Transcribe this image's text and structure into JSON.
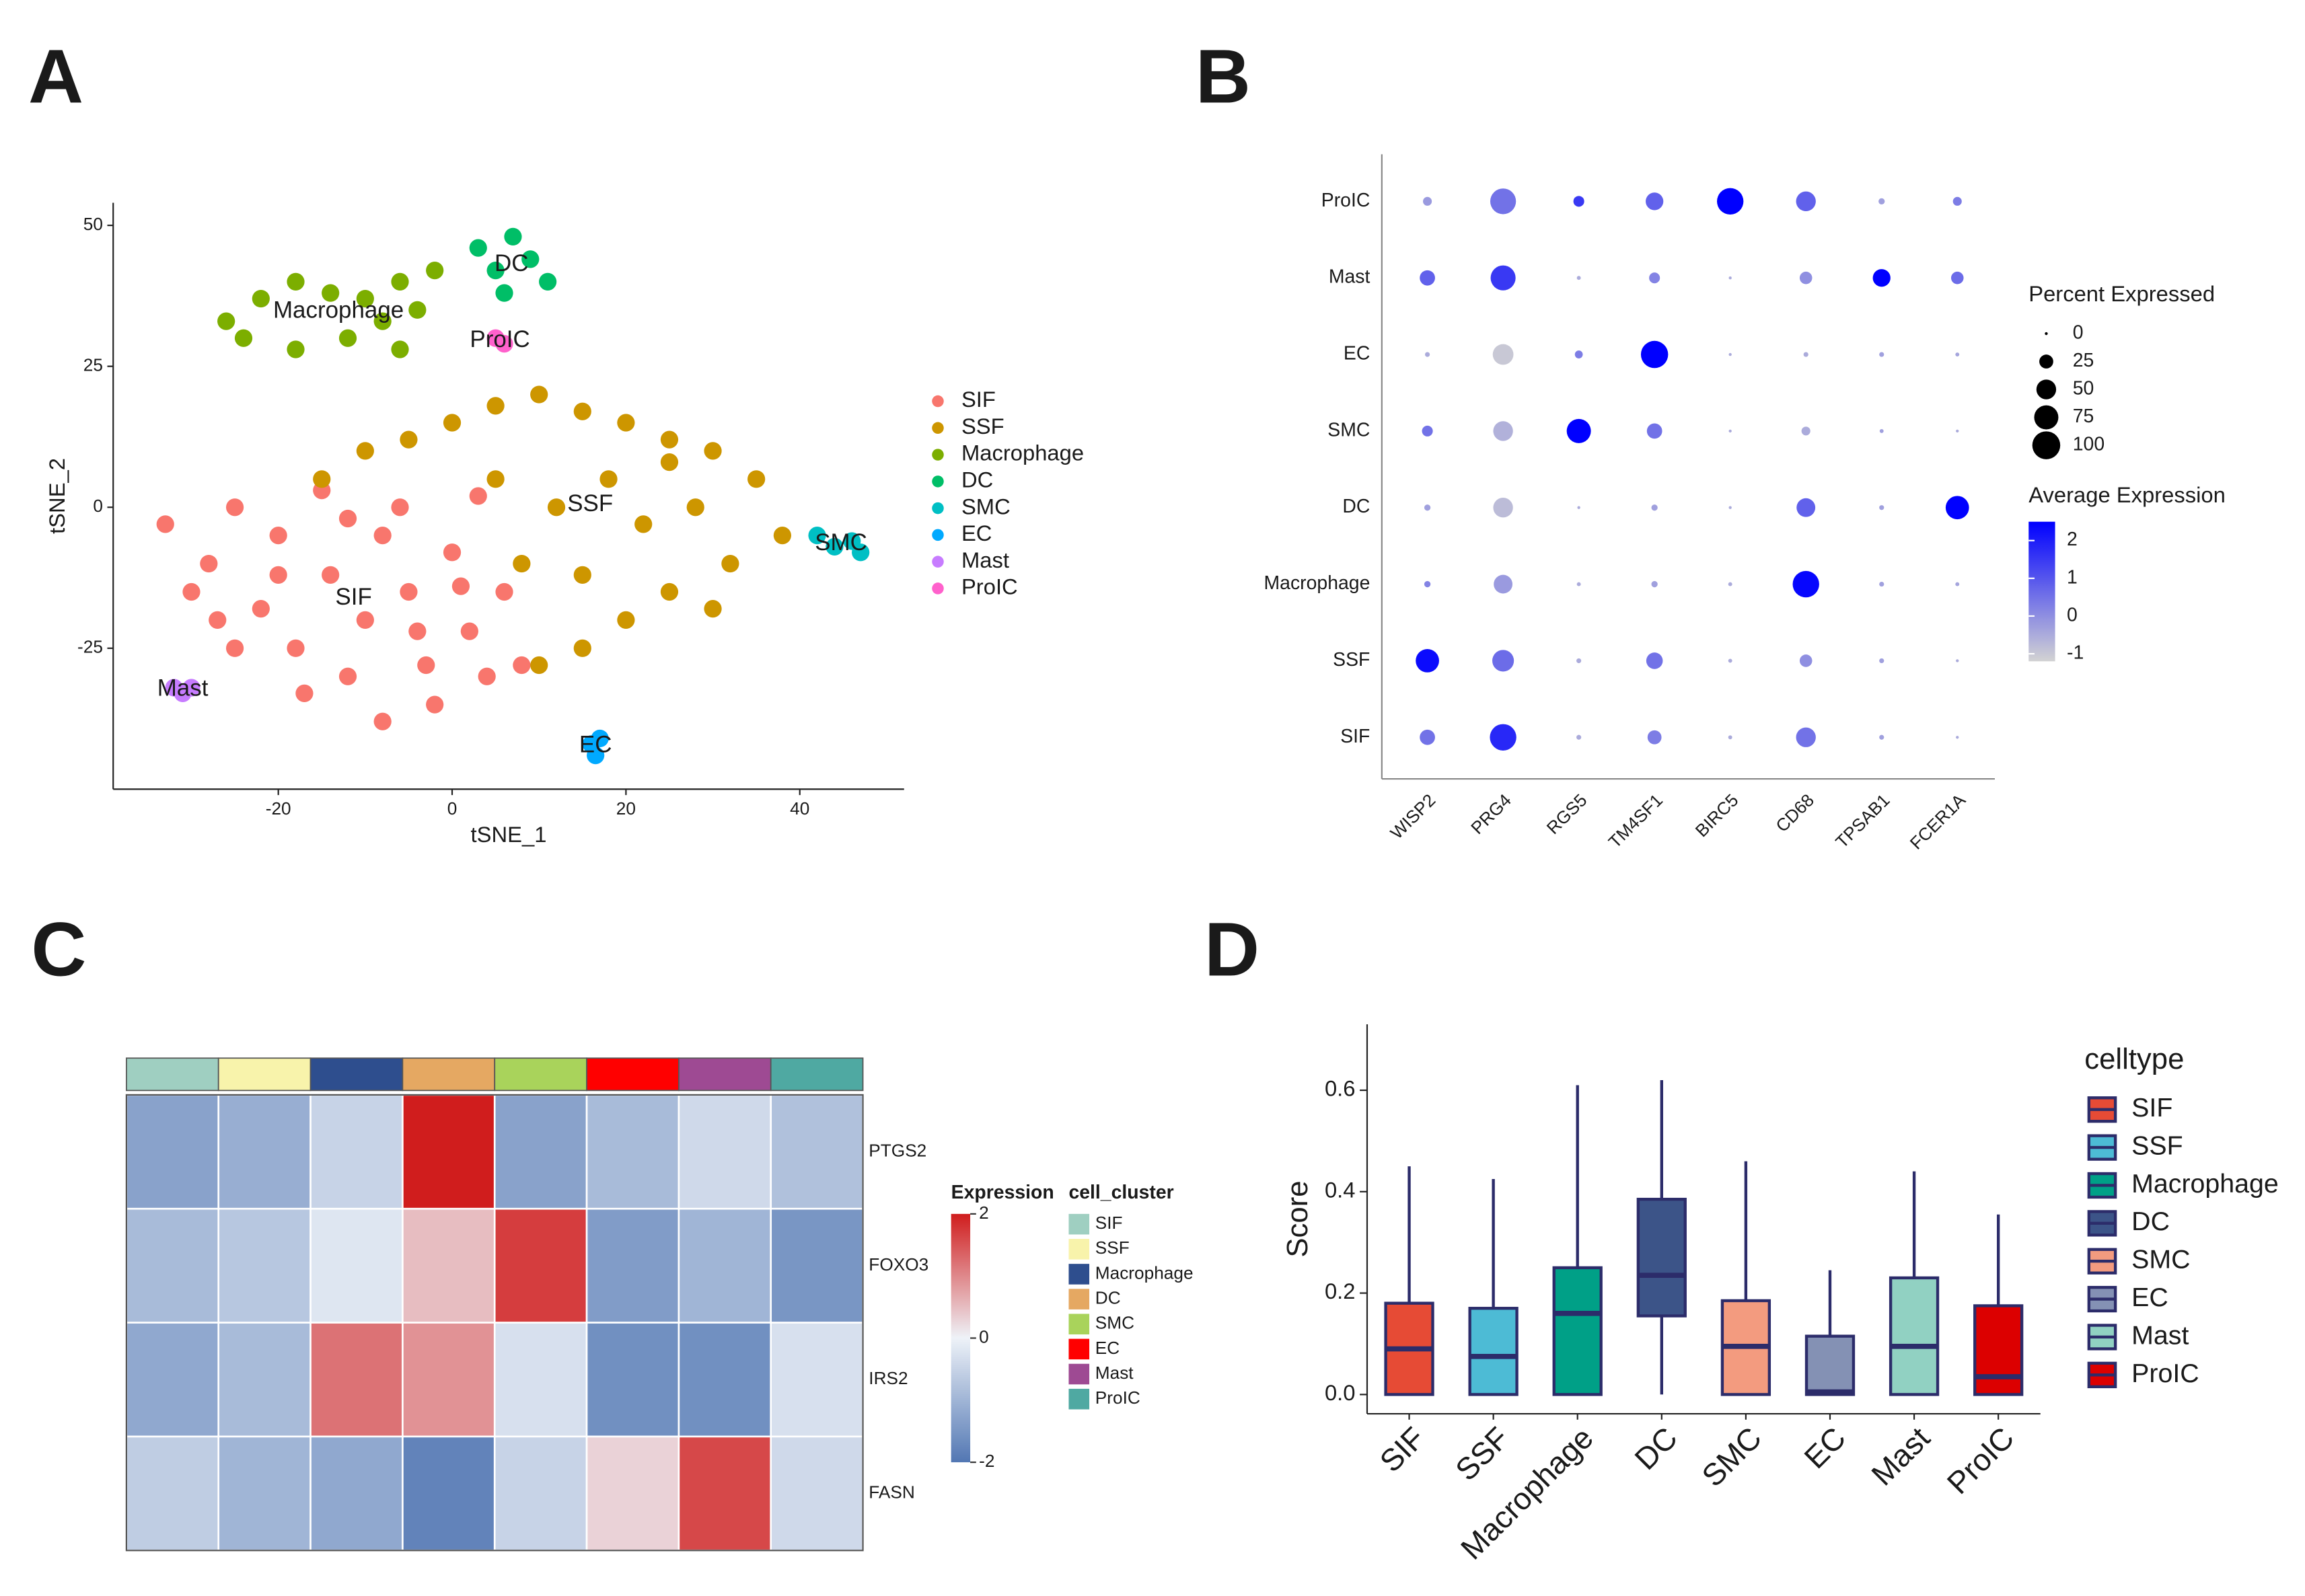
{
  "chart_data": [
    {
      "panel": "A",
      "type": "scatter",
      "xlabel": "tSNE_1",
      "ylabel": "tSNE_2",
      "xlim": [
        -39,
        52
      ],
      "ylim": [
        -50,
        54
      ],
      "xticks": [
        -20,
        0,
        20,
        40
      ],
      "yticks": [
        -25,
        0,
        25,
        50
      ],
      "series": [
        {
          "name": "SIF",
          "color": "#f8766d",
          "x": [
            -33,
            -28,
            -25,
            -22,
            -20,
            -18,
            -15,
            -14,
            -12,
            -10,
            -8,
            -6,
            -5,
            -3,
            -2,
            0,
            2,
            4,
            6,
            3,
            -25,
            -30,
            -17,
            -8,
            8,
            -12,
            -20,
            -4,
            1,
            -27
          ],
          "y": [
            -3,
            -10,
            0,
            -18,
            -5,
            -25,
            3,
            -12,
            -30,
            -20,
            -5,
            0,
            -15,
            -28,
            -35,
            -8,
            -22,
            -30,
            -15,
            2,
            -25,
            -15,
            -33,
            -38,
            -28,
            -2,
            -12,
            -22,
            -14,
            -20
          ]
        },
        {
          "name": "SSF",
          "color": "#cd9600",
          "x": [
            -15,
            -10,
            -5,
            0,
            5,
            10,
            15,
            20,
            25,
            30,
            35,
            38,
            32,
            25,
            20,
            15,
            10,
            8,
            12,
            18,
            22,
            28,
            5,
            15,
            30,
            25
          ],
          "y": [
            5,
            10,
            12,
            15,
            18,
            20,
            17,
            15,
            12,
            10,
            5,
            -5,
            -10,
            -15,
            -20,
            -25,
            -28,
            -10,
            0,
            5,
            -3,
            0,
            5,
            -12,
            -18,
            8
          ]
        },
        {
          "name": "Macrophage",
          "color": "#7cae00",
          "x": [
            -26,
            -22,
            -18,
            -14,
            -10,
            -6,
            -2,
            -12,
            -18,
            -24,
            -8,
            -4,
            -6
          ],
          "y": [
            33,
            37,
            40,
            38,
            37,
            40,
            42,
            30,
            28,
            30,
            33,
            35,
            28
          ]
        },
        {
          "name": "DC",
          "color": "#00be67",
          "x": [
            3,
            5,
            7,
            9,
            11,
            6
          ],
          "y": [
            46,
            42,
            48,
            44,
            40,
            38
          ]
        },
        {
          "name": "SMC",
          "color": "#00bfc4",
          "x": [
            42,
            44,
            46,
            47
          ],
          "y": [
            -5,
            -7,
            -6,
            -8
          ]
        },
        {
          "name": "EC",
          "color": "#00a9ff",
          "x": [
            16,
            16.5,
            17
          ],
          "y": [
            -42,
            -44,
            -41
          ]
        },
        {
          "name": "Mast",
          "color": "#c77cff",
          "x": [
            -32,
            -31,
            -30
          ],
          "y": [
            -32,
            -33,
            -32
          ]
        },
        {
          "name": "ProIC",
          "color": "#ff61cc",
          "x": [
            5,
            6
          ],
          "y": [
            30,
            29
          ]
        }
      ]
    },
    {
      "panel": "B",
      "type": "dot",
      "categories": [
        "WISP2",
        "PRG4",
        "RGS5",
        "TM4SF1",
        "BIRC5",
        "CD68",
        "TPSAB1",
        "FCER1A"
      ],
      "rows": [
        "ProIC",
        "Mast",
        "EC",
        "SMC",
        "DC",
        "Macrophage",
        "SSF",
        "SIF"
      ],
      "percent": [
        [
          10,
          85,
          15,
          40,
          90,
          50,
          5,
          10
        ],
        [
          30,
          80,
          2,
          15,
          1,
          20,
          40,
          20
        ],
        [
          3,
          55,
          8,
          95,
          1,
          3,
          3,
          2
        ],
        [
          15,
          50,
          75,
          30,
          1,
          10,
          2,
          1
        ],
        [
          5,
          50,
          1,
          5,
          1,
          45,
          3,
          70
        ],
        [
          5,
          45,
          2,
          5,
          2,
          90,
          3,
          2
        ],
        [
          70,
          60,
          3,
          35,
          2,
          20,
          3,
          1
        ],
        [
          30,
          90,
          3,
          25,
          2,
          50,
          3,
          1
        ]
      ],
      "avg": [
        [
          -0.2,
          0.5,
          1.5,
          0.8,
          2.5,
          0.8,
          -0.3,
          0.3
        ],
        [
          0.8,
          1.5,
          -0.5,
          0.2,
          -0.5,
          0,
          2.5,
          0.6
        ],
        [
          -0.5,
          -1,
          0.3,
          2.5,
          -0.5,
          -0.5,
          -0.3,
          -0.4
        ],
        [
          0.5,
          -0.6,
          2.5,
          0.5,
          -0.5,
          -0.5,
          -0.3,
          -0.5
        ],
        [
          -0.3,
          -0.8,
          -0.5,
          -0.3,
          -0.5,
          0.8,
          -0.3,
          2.5
        ],
        [
          0.2,
          -0.2,
          -0.5,
          -0.3,
          -0.5,
          2.4,
          -0.3,
          -0.4
        ],
        [
          2.3,
          0.6,
          -0.5,
          0.5,
          -0.5,
          0,
          -0.3,
          -0.5
        ],
        [
          0.5,
          1.8,
          -0.5,
          0.3,
          -0.5,
          0.5,
          -0.3,
          -0.5
        ]
      ],
      "size_title": "Percent Expressed",
      "size_ticks": [
        0,
        25,
        50,
        75,
        100
      ],
      "color_title": "Average Expression",
      "color_lim": [
        -1.2,
        2.5
      ],
      "color_ticks": [
        -1,
        0,
        1,
        2
      ],
      "colors": [
        "#d3d3d3",
        "#0000ff"
      ]
    },
    {
      "panel": "C",
      "type": "heatmap",
      "rows": [
        "PTGS2",
        "FOXO3",
        "IRS2",
        "FASN"
      ],
      "columns": [
        "SIF",
        "SSF",
        "Macrophage",
        "DC",
        "SMC",
        "EC",
        "Mast",
        "ProIC"
      ],
      "column_colors": [
        "#9fcfc1",
        "#f8f3ab",
        "#2e4e8e",
        "#e5a862",
        "#a9d35b",
        "#ff0000",
        "#9e4a93",
        "#4fa9a2"
      ],
      "values": [
        [
          -1.3,
          -1.1,
          -0.5,
          2.0,
          -1.3,
          -0.9,
          -0.4,
          -0.8
        ],
        [
          -0.9,
          -0.7,
          -0.2,
          0.5,
          1.7,
          -1.4,
          -1.0,
          -1.5
        ],
        [
          -1.2,
          -0.9,
          1.2,
          0.9,
          -0.3,
          -1.6,
          -1.6,
          -0.3
        ],
        [
          -0.6,
          -1.0,
          -1.2,
          -1.8,
          -0.5,
          0.3,
          1.6,
          -0.4
        ]
      ],
      "color_title": "Expression",
      "annotation_title": "cell_cluster",
      "color_lim": [
        -2,
        2
      ],
      "color_ticks": [
        -2,
        0,
        2
      ],
      "colors": [
        "#5277b3",
        "#eef2f8",
        "#d01d1d"
      ]
    },
    {
      "panel": "D",
      "type": "box",
      "ylabel": "Score",
      "legend_title": "celltype",
      "categories": [
        "SIF",
        "SSF",
        "Macrophage",
        "DC",
        "SMC",
        "EC",
        "Mast",
        "ProIC"
      ],
      "colors": [
        "#e64b35",
        "#4dbbd5",
        "#00a087",
        "#3c5488",
        "#f39b7f",
        "#8491b4",
        "#91d1c2",
        "#dc0000"
      ],
      "min": [
        0,
        0,
        0,
        0,
        0,
        0,
        0,
        0
      ],
      "q1": [
        0,
        0,
        0,
        0.155,
        0,
        0,
        0,
        0
      ],
      "median": [
        0.09,
        0.075,
        0.16,
        0.235,
        0.095,
        0.005,
        0.095,
        0.035
      ],
      "q3": [
        0.18,
        0.17,
        0.25,
        0.385,
        0.185,
        0.115,
        0.23,
        0.175
      ],
      "max": [
        0.45,
        0.425,
        0.61,
        0.62,
        0.46,
        0.245,
        0.44,
        0.355
      ],
      "ylim": [
        -0.038,
        0.73
      ],
      "yticks": [
        {
          "value": 0,
          "label": "0.0"
        },
        0.2,
        0.4,
        0.6
      ]
    }
  ]
}
